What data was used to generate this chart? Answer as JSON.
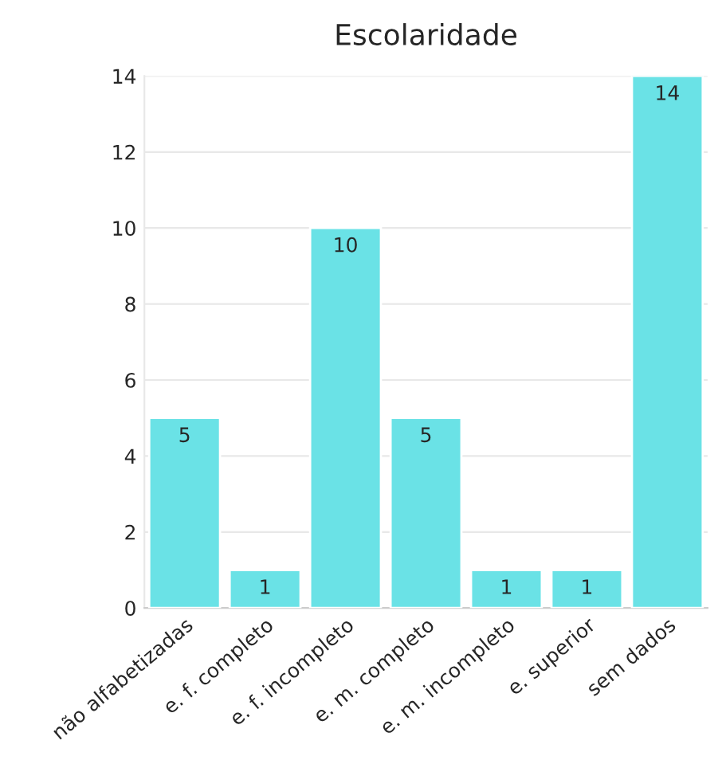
{
  "chart_data": {
    "type": "bar",
    "title": "Escolaridade",
    "categories": [
      "não alfabetizadas",
      "e. f. completo",
      "e. f. incompleto",
      "e. m. completo",
      "e. m. incompleto",
      "e. superior",
      "sem dados"
    ],
    "values": [
      5,
      1,
      10,
      5,
      1,
      1,
      14
    ],
    "color": "#6ae2e6",
    "ylim": [
      0,
      14
    ],
    "yticks": [
      0,
      2,
      4,
      6,
      8,
      10,
      12,
      14
    ],
    "grid": "y",
    "data_labels": true
  }
}
